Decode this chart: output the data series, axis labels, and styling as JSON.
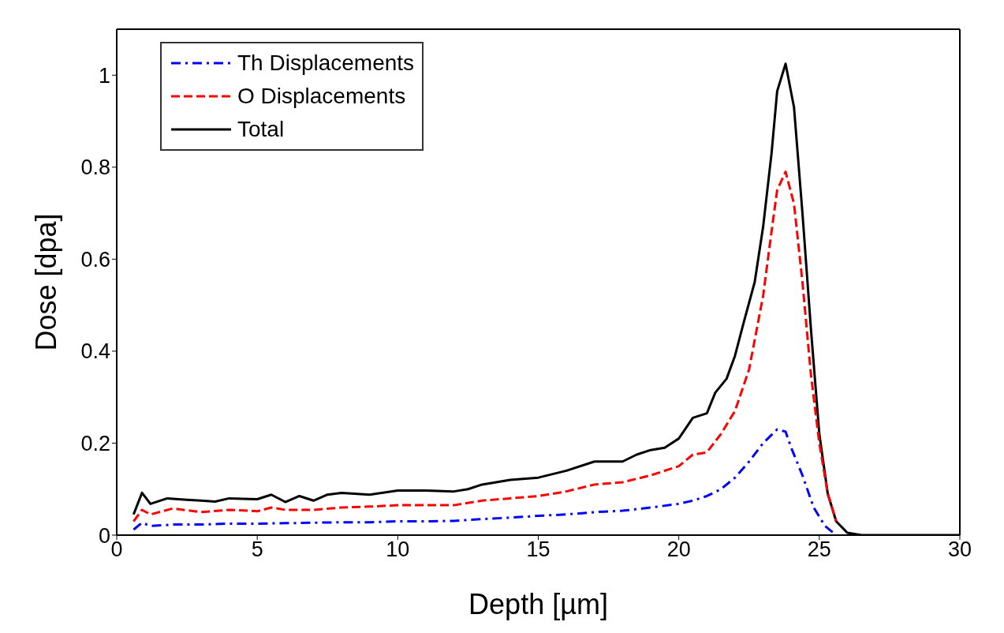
{
  "chart_data": {
    "type": "line",
    "xlabel": "Depth [µm]",
    "ylabel": "Dose [dpa]",
    "xlim": [
      0,
      30
    ],
    "xticks": [
      0,
      5,
      10,
      15,
      20,
      25,
      30
    ],
    "ylim": [
      0,
      1.1
    ],
    "yticks": [
      0,
      0.2,
      0.4,
      0.6,
      0.8,
      1
    ],
    "grid": false,
    "legend": "top left",
    "marker": "none",
    "series": [
      {
        "name": "Th Displacements",
        "color": "#0000ff",
        "line_style": "dashdot",
        "x": [
          0.6,
          0.9,
          1.2,
          2,
          3,
          4,
          5,
          6,
          7,
          8,
          9,
          10,
          11,
          12,
          13,
          14,
          15,
          16,
          17,
          18,
          19,
          20,
          20.5,
          21,
          21.5,
          22,
          22.5,
          23,
          23.5,
          23.8,
          24,
          24.4,
          24.8,
          25.2,
          25.5
        ],
        "values": [
          0.012,
          0.027,
          0.02,
          0.023,
          0.023,
          0.025,
          0.025,
          0.026,
          0.027,
          0.028,
          0.028,
          0.03,
          0.03,
          0.031,
          0.035,
          0.038,
          0.042,
          0.045,
          0.05,
          0.053,
          0.06,
          0.068,
          0.075,
          0.085,
          0.1,
          0.125,
          0.16,
          0.2,
          0.23,
          0.225,
          0.19,
          0.13,
          0.06,
          0.02,
          0.005
        ]
      },
      {
        "name": "O Displacements",
        "color": "#ff0000",
        "line_style": "dashed",
        "x": [
          0.6,
          0.9,
          1.2,
          2,
          3,
          4,
          5,
          5.5,
          6,
          7,
          8,
          9,
          10,
          11,
          12,
          13,
          14,
          15,
          16,
          17,
          18,
          19,
          20,
          20.5,
          21,
          21.5,
          22,
          22.5,
          23,
          23.3,
          23.5,
          23.8,
          24.1,
          24.4,
          24.7,
          25,
          25.3,
          25.6
        ],
        "values": [
          0.03,
          0.055,
          0.045,
          0.058,
          0.05,
          0.055,
          0.052,
          0.06,
          0.055,
          0.055,
          0.06,
          0.062,
          0.065,
          0.065,
          0.065,
          0.075,
          0.08,
          0.085,
          0.095,
          0.11,
          0.115,
          0.13,
          0.15,
          0.175,
          0.18,
          0.22,
          0.27,
          0.36,
          0.52,
          0.66,
          0.75,
          0.79,
          0.72,
          0.55,
          0.35,
          0.2,
          0.09,
          0.03
        ]
      },
      {
        "name": "Total",
        "color": "#000000",
        "line_style": "solid",
        "x": [
          0.6,
          0.9,
          1.2,
          1.8,
          2.5,
          3,
          3.5,
          4,
          5,
          5.5,
          6,
          6.5,
          7,
          7.5,
          8,
          9,
          10,
          11,
          12,
          12.5,
          13,
          14,
          15,
          16,
          17,
          17.5,
          18,
          18.5,
          19,
          19.5,
          20,
          20.5,
          21,
          21.3,
          21.7,
          22,
          22.3,
          22.7,
          23,
          23.3,
          23.5,
          23.8,
          24.1,
          24.4,
          24.7,
          25,
          25.3,
          25.6,
          26,
          26.5,
          30
        ],
        "values": [
          0.045,
          0.092,
          0.068,
          0.08,
          0.077,
          0.075,
          0.073,
          0.08,
          0.078,
          0.088,
          0.072,
          0.085,
          0.075,
          0.088,
          0.092,
          0.088,
          0.097,
          0.097,
          0.095,
          0.1,
          0.11,
          0.12,
          0.125,
          0.14,
          0.16,
          0.16,
          0.16,
          0.175,
          0.185,
          0.19,
          0.21,
          0.255,
          0.265,
          0.31,
          0.34,
          0.39,
          0.46,
          0.55,
          0.67,
          0.83,
          0.965,
          1.025,
          0.93,
          0.7,
          0.45,
          0.22,
          0.09,
          0.03,
          0.005,
          0,
          0
        ]
      }
    ]
  }
}
